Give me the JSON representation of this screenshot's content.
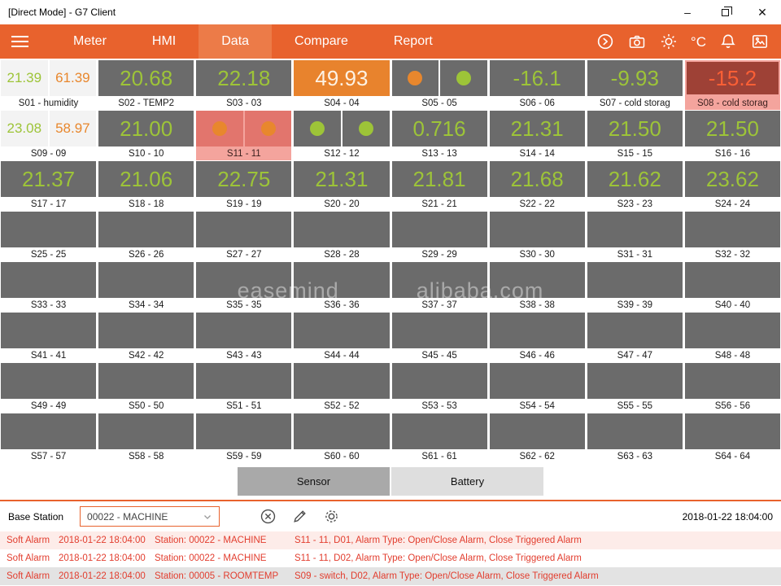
{
  "window": {
    "title": "[Direct Mode] - G7 Client",
    "controls": {
      "minimize": "–",
      "close": "✕"
    }
  },
  "nav": {
    "tabs": [
      {
        "label": "Meter",
        "active": false
      },
      {
        "label": "HMI",
        "active": false
      },
      {
        "label": "Data",
        "active": true
      },
      {
        "label": "Compare",
        "active": false
      },
      {
        "label": "Report",
        "active": false
      }
    ],
    "temperature_unit": "°C"
  },
  "colors": {
    "accent": "#e8622d",
    "green": "#9dc438",
    "orange": "#e8872d",
    "alarm_red": "#e23d2e",
    "tile_gray": "#6b6b6b"
  },
  "grid": {
    "watermark": {
      "left": "easemind",
      "right": "alibaba.com"
    },
    "tiles": [
      {
        "label": "S01 - humidity",
        "kind": "dual",
        "values": [
          "21.39",
          "61.39"
        ]
      },
      {
        "label": "S02 - TEMP2",
        "kind": "single",
        "value": "20.68"
      },
      {
        "label": "S03 - 03",
        "kind": "single",
        "value": "22.18"
      },
      {
        "label": "S04 - 04",
        "kind": "single",
        "value": "49.93",
        "style": "orange-bg"
      },
      {
        "label": "S05 - 05",
        "kind": "switch",
        "circles": [
          "orange",
          "green"
        ]
      },
      {
        "label": "S06 - 06",
        "kind": "single",
        "value": "-16.1"
      },
      {
        "label": "S07 - cold storag",
        "kind": "single",
        "value": "-9.93"
      },
      {
        "label": "S08 - cold storag",
        "kind": "single",
        "value": "-15.2",
        "alarm": true
      },
      {
        "label": "S09 - 09",
        "kind": "dual",
        "values": [
          "23.08",
          "58.97"
        ]
      },
      {
        "label": "S10 - 10",
        "kind": "single",
        "value": "21.00"
      },
      {
        "label": "S11 - 11",
        "kind": "switch",
        "circles": [
          "orange",
          "orange"
        ],
        "alarm": true
      },
      {
        "label": "S12 - 12",
        "kind": "switch",
        "circles": [
          "green",
          "green"
        ]
      },
      {
        "label": "S13 - 13",
        "kind": "single",
        "value": "0.716"
      },
      {
        "label": "S14 - 14",
        "kind": "single",
        "value": "21.31"
      },
      {
        "label": "S15 - 15",
        "kind": "single",
        "value": "21.50"
      },
      {
        "label": "S16 - 16",
        "kind": "single",
        "value": "21.50"
      },
      {
        "label": "S17 - 17",
        "kind": "single",
        "value": "21.37"
      },
      {
        "label": "S18 - 18",
        "kind": "single",
        "value": "21.06"
      },
      {
        "label": "S19 - 19",
        "kind": "single",
        "value": "22.75"
      },
      {
        "label": "S20 - 20",
        "kind": "single",
        "value": "21.31"
      },
      {
        "label": "S21 - 21",
        "kind": "single",
        "value": "21.81"
      },
      {
        "label": "S22 - 22",
        "kind": "single",
        "value": "21.68"
      },
      {
        "label": "S23 - 23",
        "kind": "single",
        "value": "21.62"
      },
      {
        "label": "S24 - 24",
        "kind": "single",
        "value": "23.62"
      },
      {
        "label": "S25 - 25",
        "kind": "empty"
      },
      {
        "label": "S26 - 26",
        "kind": "empty"
      },
      {
        "label": "S27 - 27",
        "kind": "empty"
      },
      {
        "label": "S28 - 28",
        "kind": "empty"
      },
      {
        "label": "S29 - 29",
        "kind": "empty"
      },
      {
        "label": "S30 - 30",
        "kind": "empty"
      },
      {
        "label": "S31 - 31",
        "kind": "empty"
      },
      {
        "label": "S32 - 32",
        "kind": "empty"
      },
      {
        "label": "S33 - 33",
        "kind": "empty"
      },
      {
        "label": "S34 - 34",
        "kind": "empty"
      },
      {
        "label": "S35 - 35",
        "kind": "empty"
      },
      {
        "label": "S36 - 36",
        "kind": "empty"
      },
      {
        "label": "S37 - 37",
        "kind": "empty"
      },
      {
        "label": "S38 - 38",
        "kind": "empty"
      },
      {
        "label": "S39 - 39",
        "kind": "empty"
      },
      {
        "label": "S40 - 40",
        "kind": "empty"
      },
      {
        "label": "S41 - 41",
        "kind": "empty"
      },
      {
        "label": "S42 - 42",
        "kind": "empty"
      },
      {
        "label": "S43 - 43",
        "kind": "empty"
      },
      {
        "label": "S44 - 44",
        "kind": "empty"
      },
      {
        "label": "S45 - 45",
        "kind": "empty"
      },
      {
        "label": "S46 - 46",
        "kind": "empty"
      },
      {
        "label": "S47 - 47",
        "kind": "empty"
      },
      {
        "label": "S48 - 48",
        "kind": "empty"
      },
      {
        "label": "S49 - 49",
        "kind": "empty"
      },
      {
        "label": "S50 - 50",
        "kind": "empty"
      },
      {
        "label": "S51 - 51",
        "kind": "empty"
      },
      {
        "label": "S52 - 52",
        "kind": "empty"
      },
      {
        "label": "S53 - 53",
        "kind": "empty"
      },
      {
        "label": "S54 - 54",
        "kind": "empty"
      },
      {
        "label": "S55 - 55",
        "kind": "empty"
      },
      {
        "label": "S56 - 56",
        "kind": "empty"
      },
      {
        "label": "S57 - 57",
        "kind": "empty"
      },
      {
        "label": "S58 - 58",
        "kind": "empty"
      },
      {
        "label": "S59 - 59",
        "kind": "empty"
      },
      {
        "label": "S60 - 60",
        "kind": "empty"
      },
      {
        "label": "S61 - 61",
        "kind": "empty"
      },
      {
        "label": "S62 - 62",
        "kind": "empty"
      },
      {
        "label": "S63 - 63",
        "kind": "empty"
      },
      {
        "label": "S64 - 64",
        "kind": "empty"
      }
    ]
  },
  "view_buttons": [
    {
      "label": "Sensor",
      "active": true
    },
    {
      "label": "Battery",
      "active": false
    }
  ],
  "footer": {
    "base_station_label": "Base Station",
    "station_select": "00022 - MACHINE",
    "timestamp": "2018-01-22 18:04:00"
  },
  "alarms": [
    {
      "severity": "Soft Alarm",
      "time": "2018-01-22 18:04:00",
      "station": "Station: 00022 - MACHINE",
      "message": "S11 - 11, D01, Alarm Type: Open/Close Alarm, Close Triggered Alarm",
      "bg": "#fdece9"
    },
    {
      "severity": "Soft Alarm",
      "time": "2018-01-22 18:04:00",
      "station": "Station: 00022 - MACHINE",
      "message": "S11 - 11, D02, Alarm Type: Open/Close Alarm, Close Triggered Alarm",
      "bg": "#ffffff"
    },
    {
      "severity": "Soft Alarm",
      "time": "2018-01-22 18:04:00",
      "station": "Station: 00005 - ROOMTEMP",
      "message": "S09 - switch, D02, Alarm Type: Open/Close Alarm, Close Triggered Alarm",
      "bg": "#e3e3e3"
    }
  ]
}
